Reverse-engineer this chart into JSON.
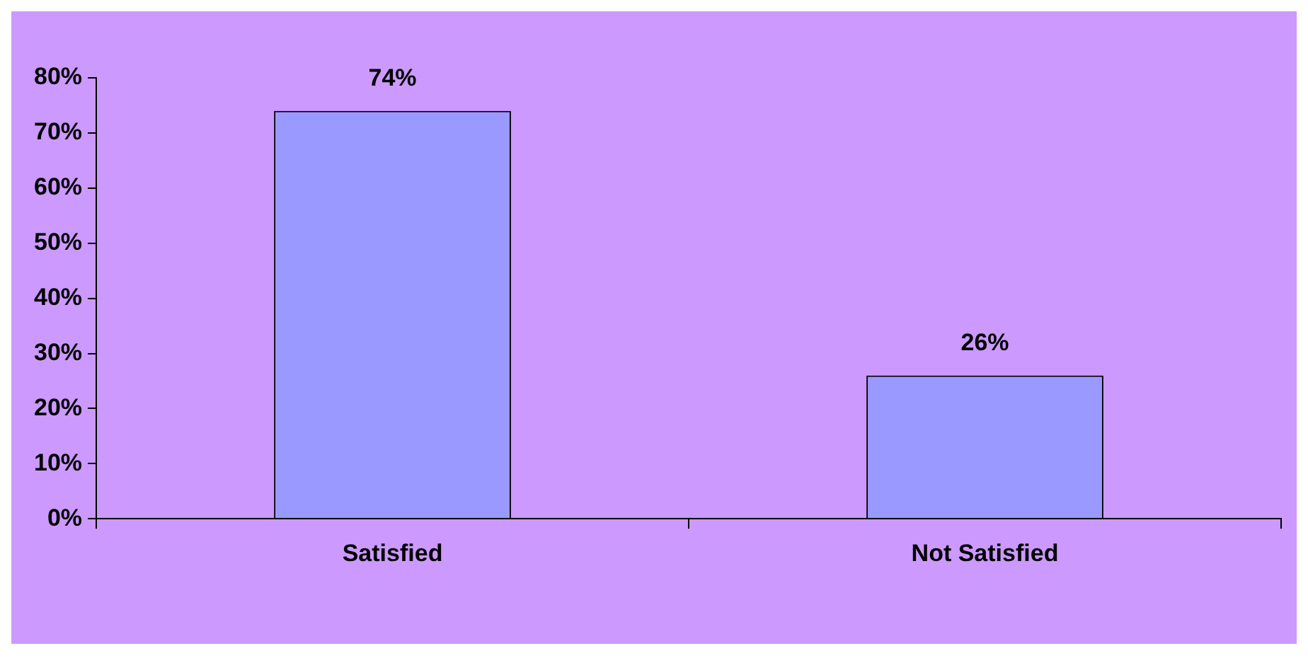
{
  "chart_data": {
    "type": "bar",
    "categories": [
      "Satisfied",
      "Not Satisfied"
    ],
    "values": [
      74,
      26
    ],
    "color": "#9999ff",
    "value_labels": [
      "74%",
      "26%"
    ],
    "ylim": [
      0,
      80
    ],
    "yticks": [
      {
        "value": 0,
        "label": "0%"
      },
      {
        "value": 10,
        "label": "10%"
      },
      {
        "value": 20,
        "label": "20%"
      },
      {
        "value": 30,
        "label": "30%"
      },
      {
        "value": 40,
        "label": "40%"
      },
      {
        "value": 50,
        "label": "50%"
      },
      {
        "value": 60,
        "label": "60%"
      },
      {
        "value": 70,
        "label": "70%"
      },
      {
        "value": 80,
        "label": "80%"
      }
    ],
    "grid": false,
    "legend": false
  }
}
